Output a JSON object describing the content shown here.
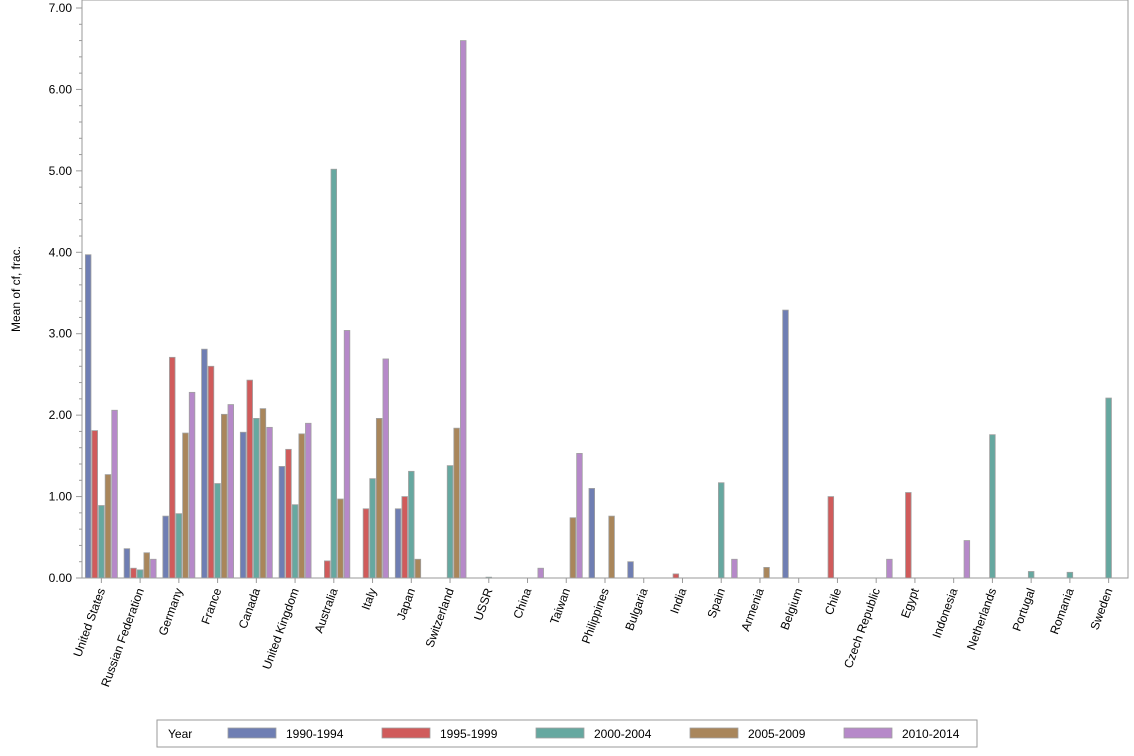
{
  "chart_data": {
    "type": "bar",
    "title": "",
    "xlabel": "",
    "ylabel": "Mean of cf, frac.",
    "ylim": [
      0,
      7
    ],
    "yticks": [
      "0.00",
      "1.00",
      "2.00",
      "3.00",
      "4.00",
      "5.00",
      "6.00",
      "7.00"
    ],
    "grid": false,
    "legend_position": "bottom",
    "legend_title": "Year",
    "categories": [
      "United States",
      "Russian Federation",
      "Germany",
      "France",
      "Canada",
      "United Kingdom",
      "Australia",
      "Italy",
      "Japan",
      "Switzerland",
      "USSR",
      "China",
      "Taiwan",
      "Philippines",
      "Bulgaria",
      "India",
      "Spain",
      "Armenia",
      "Belgium",
      "Chile",
      "Czech Republic",
      "Egypt",
      "Indonesia",
      "Netherlands",
      "Portugal",
      "Romania",
      "Sweden"
    ],
    "series": [
      {
        "name": "1990-1994",
        "color": "#6f7eb3",
        "values": [
          3.97,
          0.36,
          0.76,
          2.81,
          1.79,
          1.37,
          null,
          null,
          0.85,
          null,
          null,
          null,
          null,
          1.1,
          0.2,
          null,
          null,
          null,
          3.29,
          null,
          null,
          null,
          null,
          null,
          null,
          null,
          null
        ]
      },
      {
        "name": "1995-1999",
        "color": "#d05b5b",
        "values": [
          1.81,
          0.12,
          2.71,
          2.6,
          2.43,
          1.58,
          0.21,
          0.85,
          1.0,
          null,
          null,
          null,
          null,
          null,
          null,
          0.05,
          null,
          null,
          null,
          1.0,
          null,
          1.05,
          null,
          null,
          null,
          null,
          null
        ]
      },
      {
        "name": "2000-2004",
        "color": "#66a8a0",
        "values": [
          0.89,
          0.1,
          0.79,
          1.16,
          1.96,
          0.9,
          5.02,
          1.22,
          1.31,
          1.38,
          0.01,
          null,
          null,
          null,
          null,
          null,
          1.17,
          null,
          null,
          null,
          null,
          null,
          null,
          1.76,
          0.08,
          0.07,
          2.21
        ]
      },
      {
        "name": "2005-2009",
        "color": "#a9865b",
        "values": [
          1.27,
          0.31,
          1.78,
          2.01,
          2.08,
          1.77,
          0.97,
          1.96,
          0.23,
          1.84,
          null,
          null,
          0.74,
          0.76,
          null,
          null,
          null,
          0.13,
          null,
          null,
          null,
          null,
          null,
          null,
          null,
          null,
          null
        ]
      },
      {
        "name": "2010-2014",
        "color": "#b689c9",
        "values": [
          2.06,
          0.23,
          2.28,
          2.13,
          1.85,
          1.9,
          3.04,
          2.69,
          null,
          6.6,
          null,
          0.12,
          1.53,
          null,
          null,
          null,
          0.23,
          null,
          null,
          null,
          0.23,
          null,
          0.46,
          null,
          null,
          null,
          null
        ]
      }
    ]
  }
}
